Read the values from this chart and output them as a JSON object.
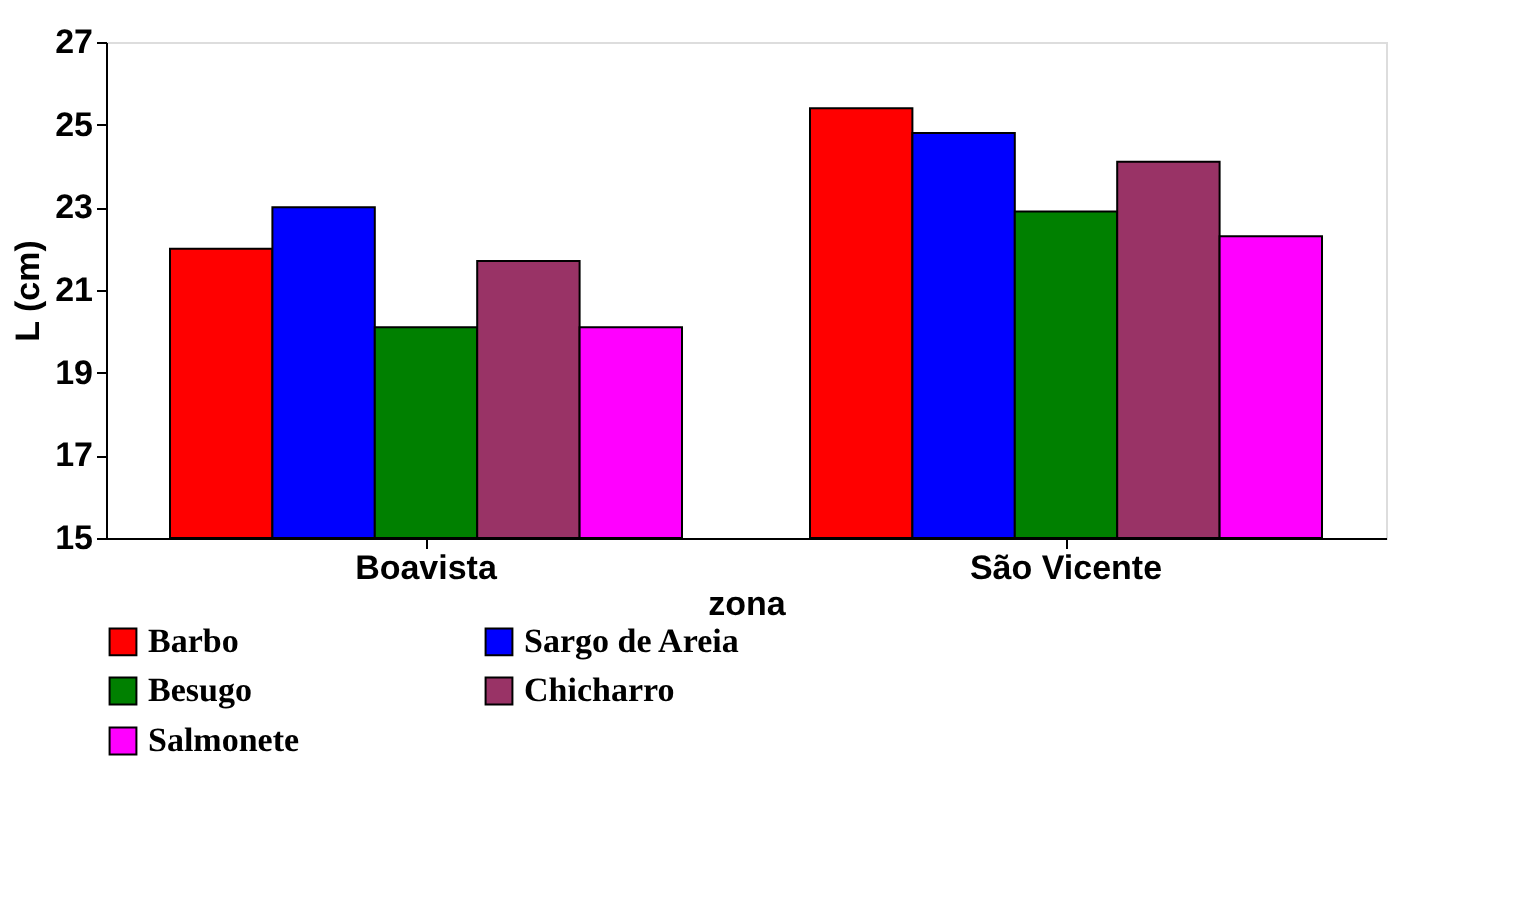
{
  "chart_data": {
    "type": "bar",
    "xlabel": "zona",
    "ylabel": "L (cm)",
    "categories": [
      "Boavista",
      "São Vicente"
    ],
    "series": [
      {
        "name": "Barbo",
        "color": "#ff0000",
        "values": [
          22.0,
          25.4
        ]
      },
      {
        "name": "Sargo de Areia",
        "color": "#0000ff",
        "values": [
          23.0,
          24.8
        ]
      },
      {
        "name": "Besugo",
        "color": "#008000",
        "values": [
          20.1,
          22.9
        ]
      },
      {
        "name": "Chicharro",
        "color": "#993366",
        "values": [
          21.7,
          24.1
        ]
      },
      {
        "name": "Salmonete",
        "color": "#ff00ff",
        "values": [
          20.1,
          22.3
        ]
      }
    ],
    "ylim": [
      15,
      27
    ],
    "yticks": [
      15,
      17,
      19,
      21,
      23,
      25,
      27
    ],
    "grid": false,
    "legend": "bottom"
  }
}
